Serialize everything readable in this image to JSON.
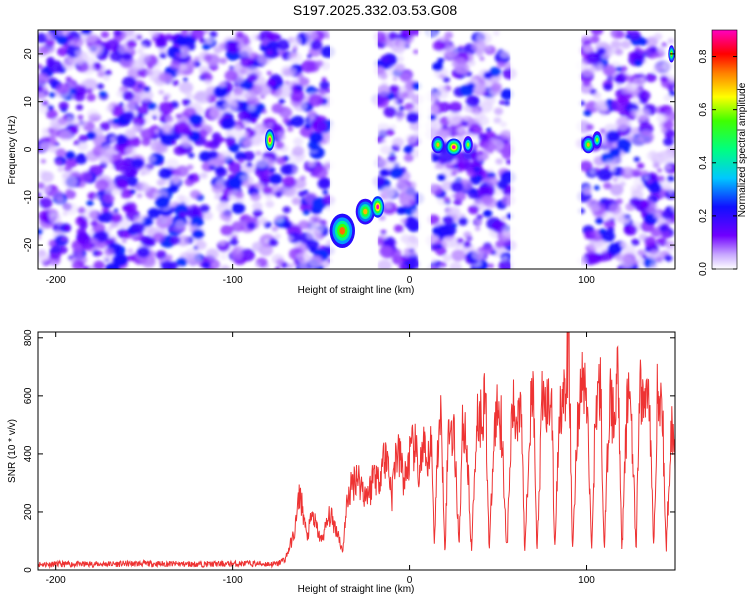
{
  "chart_data": [
    {
      "type": "heatmap",
      "title": "S197.2025.332.03.53.G08",
      "xlabel": "Height of straight line (km)",
      "ylabel": "Frequency (Hz)",
      "xlim": [
        -210,
        150
      ],
      "ylim": [
        -25,
        25
      ],
      "xticks": [
        -200,
        -100,
        0,
        100
      ],
      "yticks": [
        -20,
        -10,
        0,
        10,
        20
      ],
      "colorbar": {
        "label": "Normalized spectral amplitude",
        "range": [
          0.0,
          0.9
        ],
        "ticks": [
          "0.0",
          "0.2",
          "0.4",
          "0.6",
          "0.8"
        ]
      },
      "blank_bands_km": [
        [
          -45,
          -18
        ],
        [
          5,
          12
        ],
        [
          57,
          97
        ]
      ],
      "hot_spots": [
        {
          "x": -79,
          "y": 2,
          "w": 3,
          "h": 2.5,
          "amp": 0.9
        },
        {
          "x": -38,
          "y": -17,
          "w": 8,
          "h": 4,
          "amp": 0.75
        },
        {
          "x": -25,
          "y": -13,
          "w": 6,
          "h": 3,
          "amp": 0.7
        },
        {
          "x": -18,
          "y": -12,
          "w": 4,
          "h": 2.5,
          "amp": 0.9
        },
        {
          "x": 16,
          "y": 1,
          "w": 4,
          "h": 2,
          "amp": 0.7
        },
        {
          "x": 25,
          "y": 0.5,
          "w": 5,
          "h": 2,
          "amp": 0.9
        },
        {
          "x": 33,
          "y": 1,
          "w": 3,
          "h": 2,
          "amp": 0.6
        },
        {
          "x": 101,
          "y": 1,
          "w": 4,
          "h": 2,
          "amp": 0.7
        },
        {
          "x": 106,
          "y": 2,
          "w": 3,
          "h": 2,
          "amp": 0.6
        },
        {
          "x": 148,
          "y": 20,
          "w": 2,
          "h": 2,
          "amp": 0.7
        }
      ]
    },
    {
      "type": "line",
      "xlabel": "Height of straight line (km)",
      "ylabel": "SNR (10 * v/v)",
      "xlim": [
        -210,
        150
      ],
      "ylim": [
        0,
        820
      ],
      "xticks": [
        -200,
        -100,
        0,
        100
      ],
      "yticks": [
        0,
        200,
        400,
        600,
        800
      ],
      "series": [
        {
          "name": "SNR",
          "color": "#ee3333",
          "x": [
            -210,
            -180,
            -150,
            -120,
            -90,
            -75,
            -70,
            -65,
            -62,
            -58,
            -55,
            -50,
            -45,
            -40,
            -38,
            -35,
            -30,
            -25,
            -22,
            -20,
            -18,
            -15,
            -12,
            -10,
            -8,
            -5,
            -3,
            0,
            3,
            5,
            8,
            10,
            12,
            14,
            16,
            18,
            20,
            22,
            25,
            28,
            30,
            32,
            35,
            38,
            40,
            43,
            45,
            48,
            50,
            52,
            55,
            58,
            60,
            63,
            65,
            68,
            70,
            72,
            75,
            78,
            80,
            82,
            85,
            88,
            90,
            92,
            95,
            98,
            100,
            103,
            105,
            108,
            110,
            113,
            115,
            118,
            120,
            123,
            125,
            128,
            130,
            133,
            135,
            138,
            140,
            143,
            145,
            148,
            150
          ],
          "values": [
            20,
            20,
            22,
            20,
            22,
            20,
            40,
            130,
            270,
            110,
            190,
            100,
            190,
            120,
            60,
            250,
            330,
            260,
            280,
            350,
            300,
            390,
            370,
            250,
            400,
            380,
            300,
            390,
            430,
            330,
            420,
            320,
            480,
            100,
            440,
            520,
            60,
            500,
            480,
            90,
            500,
            470,
            60,
            540,
            520,
            600,
            60,
            480,
            580,
            500,
            60,
            560,
            500,
            630,
            60,
            520,
            600,
            50,
            580,
            550,
            650,
            60,
            600,
            560,
            820,
            50,
            520,
            660,
            600,
            60,
            550,
            640,
            50,
            600,
            520,
            690,
            60,
            580,
            620,
            50,
            630,
            560,
            690,
            60,
            600,
            540,
            60,
            520,
            400
          ]
        }
      ]
    }
  ]
}
